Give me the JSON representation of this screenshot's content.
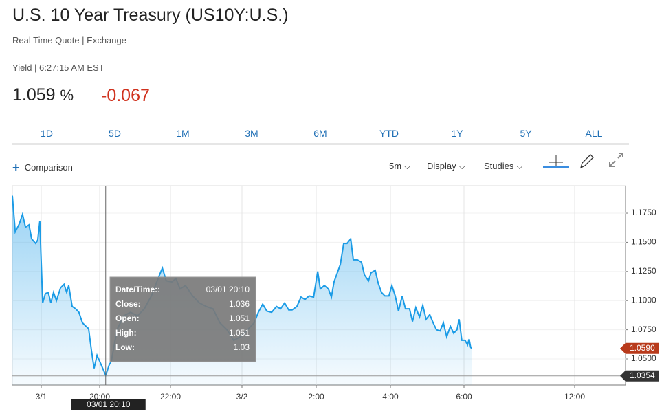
{
  "header": {
    "title": "U.S. 10 Year Treasury (US10Y:U.S.)",
    "subtitle": "Real Time Quote | Exchange",
    "timestamp": "Yield | 6:27:15 AM EST",
    "last": "1.059",
    "unit": "%",
    "change": "-0.067"
  },
  "ranges": [
    "1D",
    "5D",
    "1M",
    "3M",
    "6M",
    "YTD",
    "1Y",
    "5Y",
    "ALL"
  ],
  "toolbar": {
    "comparison": "Comparison",
    "interval": "5m",
    "display": "Display",
    "studies": "Studies"
  },
  "chart_data": {
    "type": "line",
    "color": "#1a9be6",
    "grid": true,
    "x": [
      17.01,
      17.11,
      17.25,
      17.36,
      17.46,
      17.58,
      17.67,
      17.81,
      17.88,
      17.95,
      18.05,
      18.14,
      18.24,
      18.33,
      18.42,
      18.52,
      18.66,
      18.78,
      18.87,
      18.94,
      19.06,
      19.18,
      19.29,
      19.41,
      19.53,
      19.62,
      19.72,
      19.81,
      19.91,
      20.0,
      20.17,
      20.27,
      20.33,
      20.49,
      20.68,
      20.87,
      21.07,
      21.26,
      21.46,
      21.65,
      21.77,
      21.88,
      22.04,
      22.15,
      22.27,
      22.42,
      22.62,
      22.81,
      23.0,
      23.19,
      23.38,
      23.58,
      23.77,
      23.96,
      24.15,
      24.33,
      24.44,
      24.56,
      24.67,
      24.8,
      24.93,
      25.04,
      25.15,
      25.26,
      25.35,
      25.48,
      25.59,
      25.7,
      25.81,
      25.93,
      26.04,
      26.11,
      26.22,
      26.33,
      26.41,
      26.48,
      26.56,
      26.65,
      26.74,
      26.83,
      26.93,
      27.0,
      27.11,
      27.22,
      27.3,
      27.41,
      27.48,
      27.59,
      27.67,
      27.76,
      27.85,
      27.96,
      28.04,
      28.13,
      28.22,
      28.32,
      28.41,
      28.52,
      28.6,
      28.69,
      28.79,
      28.88,
      28.97,
      29.07,
      29.16,
      29.25,
      29.35,
      29.44,
      29.53,
      29.63,
      29.72,
      29.81,
      29.87,
      29.94,
      30.06,
      30.19,
      30.28,
      30.36,
      30.41
    ],
    "values": [
      1.19,
      1.159,
      1.166,
      1.174,
      1.163,
      1.165,
      1.153,
      1.149,
      1.152,
      1.168,
      1.098,
      1.106,
      1.107,
      1.098,
      1.107,
      1.1,
      1.111,
      1.114,
      1.107,
      1.113,
      1.095,
      1.093,
      1.09,
      1.081,
      1.078,
      1.076,
      1.057,
      1.042,
      1.053,
      1.048,
      1.036,
      1.045,
      1.048,
      1.075,
      1.087,
      1.09,
      1.087,
      1.093,
      1.104,
      1.119,
      1.128,
      1.117,
      1.116,
      1.119,
      1.11,
      1.113,
      1.104,
      1.098,
      1.095,
      1.093,
      1.081,
      1.075,
      1.066,
      1.069,
      1.075,
      1.081,
      1.09,
      1.097,
      1.091,
      1.09,
      1.095,
      1.093,
      1.098,
      1.092,
      1.092,
      1.095,
      1.103,
      1.101,
      1.104,
      1.103,
      1.125,
      1.11,
      1.113,
      1.11,
      1.103,
      1.116,
      1.123,
      1.131,
      1.149,
      1.149,
      1.153,
      1.135,
      1.135,
      1.133,
      1.122,
      1.117,
      1.124,
      1.126,
      1.115,
      1.107,
      1.104,
      1.104,
      1.113,
      1.104,
      1.091,
      1.104,
      1.093,
      1.093,
      1.082,
      1.094,
      1.086,
      1.096,
      1.084,
      1.088,
      1.081,
      1.075,
      1.074,
      1.081,
      1.069,
      1.078,
      1.072,
      1.075,
      1.084,
      1.066,
      1.066,
      1.062,
      1.067,
      1.06,
      1.059
    ],
    "xlim": [
      17.01,
      38.76
    ],
    "xticks": [
      {
        "value": 18,
        "label": "3/1"
      },
      {
        "value": 20,
        "label": "20:00"
      },
      {
        "value": 22,
        "label": "22:00"
      },
      {
        "value": 24,
        "label": "3/2"
      },
      {
        "value": 26,
        "label": "2:00"
      },
      {
        "value": 28,
        "label": "4:00"
      },
      {
        "value": 30,
        "label": "6:00"
      },
      {
        "value": 36,
        "label": "12:00"
      }
    ],
    "ylim": [
      1.0276,
      1.1986
    ],
    "yticks": [
      {
        "value": 1.175,
        "label": "1.1750"
      },
      {
        "value": 1.15,
        "label": "1.1500"
      },
      {
        "value": 1.125,
        "label": "1.1250"
      },
      {
        "value": 1.1,
        "label": "1.1000"
      },
      {
        "value": 1.075,
        "label": "1.0750"
      },
      {
        "value": 1.05,
        "label": "1.0500"
      }
    ],
    "price_labels": [
      {
        "value": 1.059,
        "label": "1.0590",
        "color": "#b83a1b"
      },
      {
        "value": 1.0354,
        "label": "1.0354",
        "color": "#333333"
      }
    ],
    "crosshair": {
      "x": 20.17,
      "label": "03/01 20:10"
    },
    "tooltip": [
      {
        "label": "Date/Time::",
        "value": "03/01 20:10"
      },
      {
        "label": "Close:",
        "value": "1.036"
      },
      {
        "label": "Open:",
        "value": "1.051"
      },
      {
        "label": "High:",
        "value": "1.051"
      },
      {
        "label": "Low:",
        "value": "1.03"
      }
    ]
  }
}
